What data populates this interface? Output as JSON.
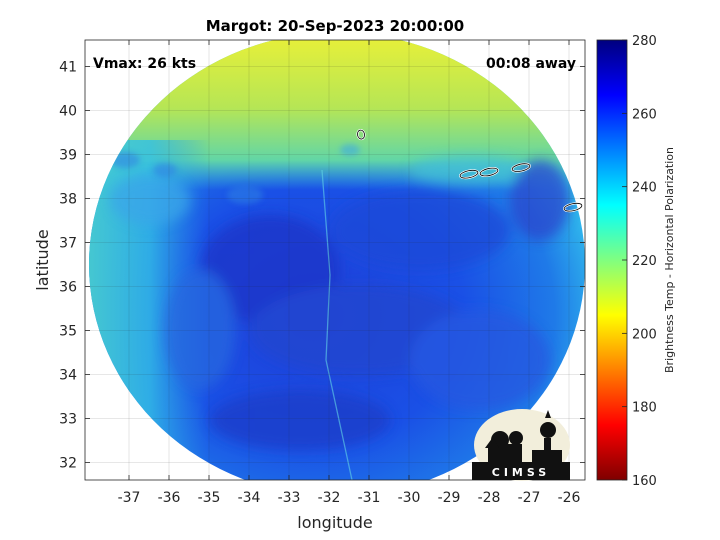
{
  "chart_data": {
    "type": "heatmap",
    "title": "Margot: 20-Sep-2023 20:00:00",
    "xlabel": "longitude",
    "ylabel": "latitude",
    "xlim": [
      -38.1,
      -25.6
    ],
    "ylim": [
      31.6,
      41.6
    ],
    "x_ticks": [
      -37,
      -36,
      -35,
      -34,
      -33,
      -32,
      -31,
      -30,
      -29,
      -28,
      -27,
      -26
    ],
    "y_ticks": [
      32,
      33,
      34,
      35,
      36,
      37,
      38,
      39,
      40,
      41
    ],
    "grid": true,
    "annotations": {
      "vmax": "Vmax: 26 kts",
      "away": "00:08 away"
    },
    "colorbar": {
      "label": "Brightness Temp - Horizontal Polarization",
      "range": [
        160,
        280
      ],
      "ticks": [
        160,
        180,
        200,
        220,
        240,
        260,
        280
      ],
      "colormap": "parula-like",
      "colors": [
        "#7f0000",
        "#ff0000",
        "#ff8000",
        "#ffff00",
        "#80ff80",
        "#00ffff",
        "#0080ff",
        "#0000ff",
        "#00007f"
      ]
    },
    "swath": {
      "center_lon": -31.8,
      "center_lat": 36.5,
      "shape": "circular scan",
      "north_value": 207,
      "edge_value": 235,
      "core_value": 262
    },
    "coastline_islands": [
      {
        "lon": -31.2,
        "lat": 39.45
      },
      {
        "lon": -28.5,
        "lat": 38.55
      },
      {
        "lon": -28.0,
        "lat": 38.6
      },
      {
        "lon": -27.2,
        "lat": 38.7
      },
      {
        "lon": -25.9,
        "lat": 37.8
      }
    ]
  },
  "logo": {
    "text": "CIMSS"
  }
}
